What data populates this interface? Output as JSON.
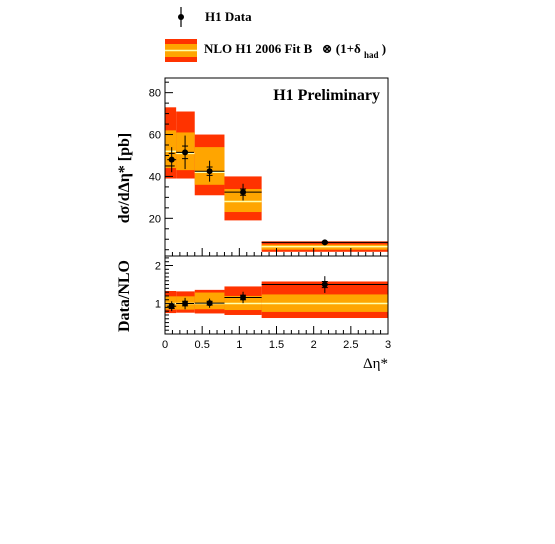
{
  "legend": {
    "data_label": "H1 Data",
    "nlo_label_main": "NLO H1 2006 Fit B",
    "nlo_label_factor_prefix": "⊗ (1+δ",
    "nlo_label_factor_sub": "had",
    "nlo_label_factor_suffix": ")"
  },
  "colors": {
    "band_outer": "#ff3300",
    "band_inner": "#ffa500",
    "central_line": "#ffffaa",
    "marker": "#000000"
  },
  "chart_data": [
    {
      "type": "bar",
      "panel": "top",
      "annotation": "H1 Preliminary",
      "ylabel": "dσ/dΔη* [pb]",
      "xlim": [
        0,
        3
      ],
      "ylim": [
        2,
        87
      ],
      "y_ticks": [
        20,
        40,
        60,
        80
      ],
      "x_ticks": [
        0,
        0.5,
        1,
        1.5,
        2,
        2.5,
        3
      ],
      "bins": [
        {
          "x_low": 0.0,
          "x_high": 0.15,
          "nlo": 52,
          "inner": [
            44,
            62
          ],
          "outer": [
            39,
            73
          ]
        },
        {
          "x_low": 0.15,
          "x_high": 0.4,
          "nlo": 51,
          "inner": [
            43,
            61
          ],
          "outer": [
            39,
            71
          ]
        },
        {
          "x_low": 0.4,
          "x_high": 0.8,
          "nlo": 42,
          "inner": [
            36,
            54
          ],
          "outer": [
            31,
            60
          ]
        },
        {
          "x_low": 0.8,
          "x_high": 1.3,
          "nlo": 28,
          "inner": [
            23,
            34
          ],
          "outer": [
            19,
            40
          ]
        },
        {
          "x_low": 1.3,
          "x_high": 3.0,
          "nlo": 6.5,
          "inner": [
            5.0,
            7.5
          ],
          "outer": [
            4.0,
            9.0
          ]
        }
      ],
      "points": [
        {
          "x": 0.09,
          "y": 48,
          "xerr": 0.06,
          "yerr_stat": 3,
          "yerr_tot": 6
        },
        {
          "x": 0.27,
          "y": 51.5,
          "xerr": 0.12,
          "yerr_stat": 3,
          "yerr_tot": 8
        },
        {
          "x": 0.6,
          "y": 42.5,
          "xerr": 0.2,
          "yerr_stat": 2,
          "yerr_tot": 5
        },
        {
          "x": 1.05,
          "y": 32.5,
          "xerr": 0.25,
          "yerr_stat": 1.5,
          "yerr_tot": 4
        },
        {
          "x": 2.15,
          "y": 8.5,
          "xerr": 0.85,
          "yerr_stat": 0.4,
          "yerr_tot": 1.2
        }
      ]
    },
    {
      "type": "bar",
      "panel": "bottom",
      "ylabel": "Data/NLO",
      "xlabel": "Δη*",
      "xlim": [
        0,
        3
      ],
      "ylim": [
        0.2,
        2.25
      ],
      "y_ticks": [
        1,
        2
      ],
      "x_ticks": [
        0,
        0.5,
        1,
        1.5,
        2,
        2.5,
        3
      ],
      "x_tick_labels": [
        "0",
        "0.5",
        "1",
        "1.5",
        "2",
        "2.5",
        "3"
      ],
      "bins": [
        {
          "x_low": 0.0,
          "x_high": 0.15,
          "nlo": 1.0,
          "inner": [
            0.84,
            1.19
          ],
          "outer": [
            0.75,
            1.33
          ]
        },
        {
          "x_low": 0.15,
          "x_high": 0.4,
          "nlo": 1.0,
          "inner": [
            0.84,
            1.19
          ],
          "outer": [
            0.76,
            1.32
          ]
        },
        {
          "x_low": 0.4,
          "x_high": 0.8,
          "nlo": 1.0,
          "inner": [
            0.85,
            1.29
          ],
          "outer": [
            0.74,
            1.36
          ]
        },
        {
          "x_low": 0.8,
          "x_high": 1.3,
          "nlo": 1.0,
          "inner": [
            0.83,
            1.2
          ],
          "outer": [
            0.7,
            1.45
          ]
        },
        {
          "x_low": 1.3,
          "x_high": 3.0,
          "nlo": 1.0,
          "inner": [
            0.78,
            1.24
          ],
          "outer": [
            0.62,
            1.58
          ]
        }
      ],
      "points": [
        {
          "x": 0.09,
          "y": 0.93,
          "xerr": 0.06,
          "yerr_stat": 0.06,
          "yerr_tot": 0.13
        },
        {
          "x": 0.27,
          "y": 1.0,
          "xerr": 0.12,
          "yerr_stat": 0.06,
          "yerr_tot": 0.15
        },
        {
          "x": 0.6,
          "y": 1.01,
          "xerr": 0.2,
          "yerr_stat": 0.05,
          "yerr_tot": 0.12
        },
        {
          "x": 1.05,
          "y": 1.16,
          "xerr": 0.25,
          "yerr_stat": 0.06,
          "yerr_tot": 0.15
        },
        {
          "x": 2.15,
          "y": 1.5,
          "xerr": 0.85,
          "yerr_stat": 0.08,
          "yerr_tot": 0.22
        }
      ]
    }
  ]
}
